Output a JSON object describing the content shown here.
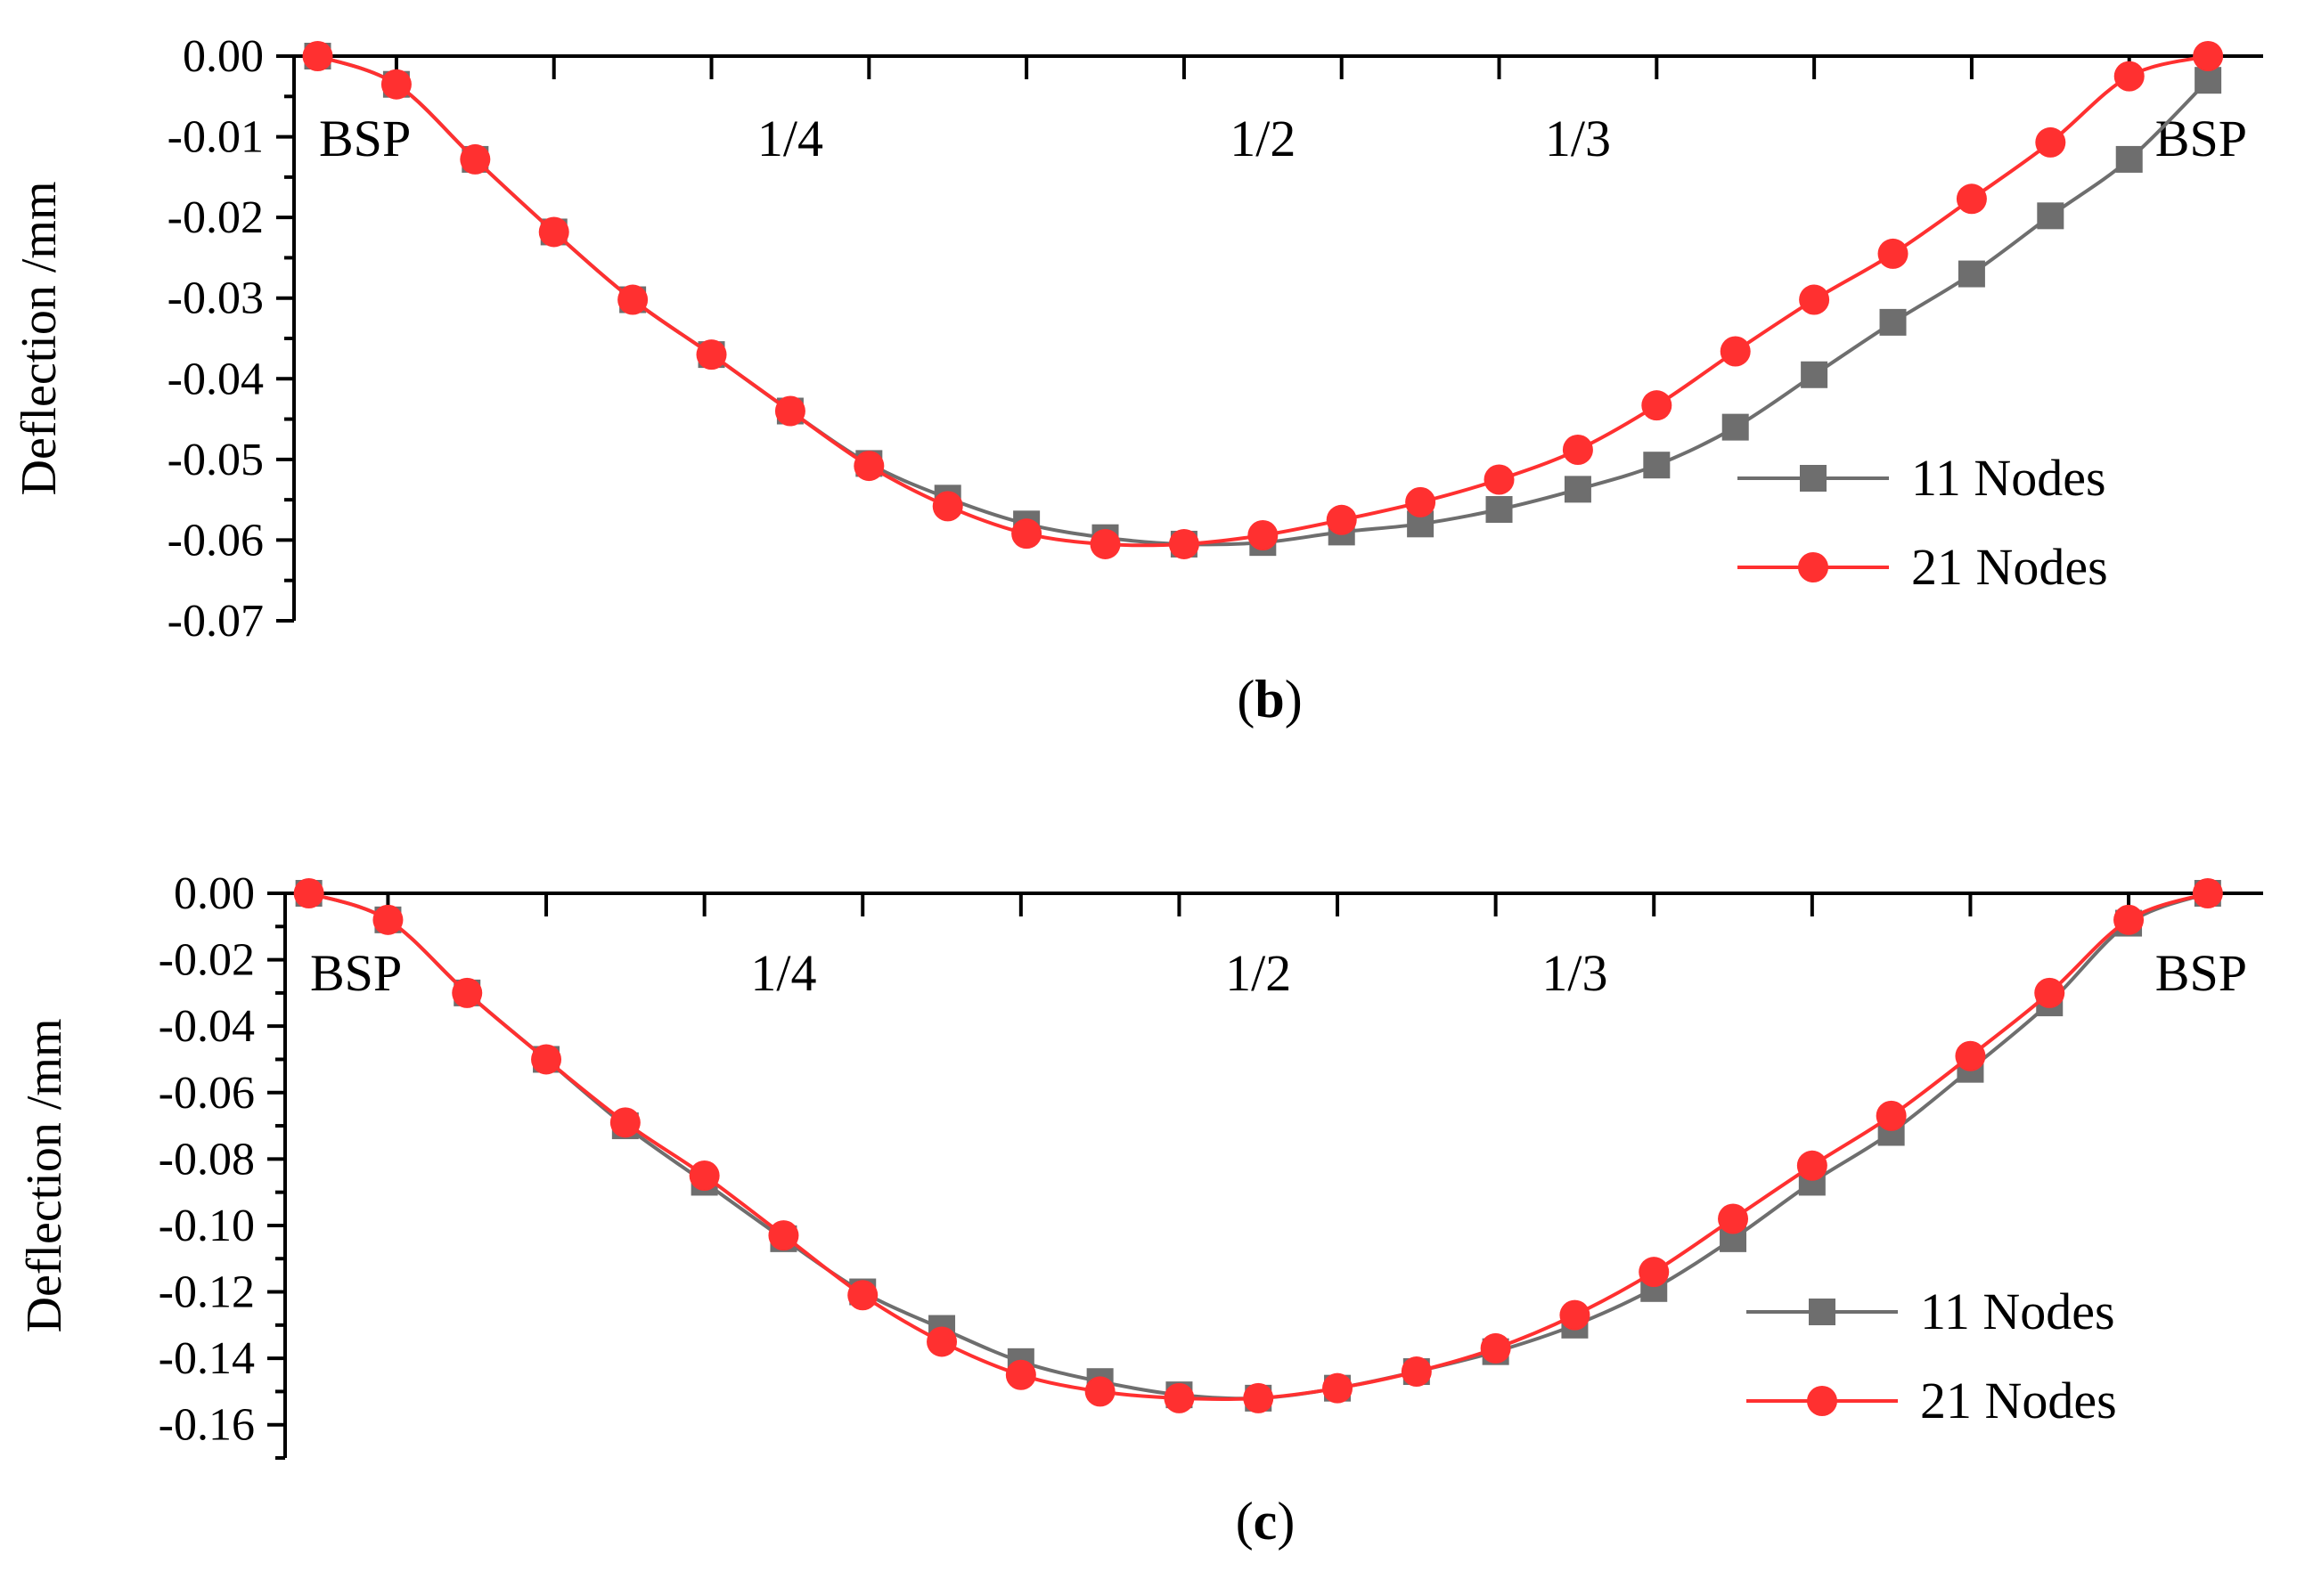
{
  "chart_data": [
    {
      "type": "line",
      "panel_label": "b",
      "ylabel": "Deflection /mm",
      "ylim": [
        -0.07,
        0.0
      ],
      "yticks": [
        "0.00",
        "-0.01",
        "-0.02",
        "-0.03",
        "-0.04",
        "-0.05",
        "-0.06",
        "-0.07"
      ],
      "ytick_values": [
        0.0,
        -0.01,
        -0.02,
        -0.03,
        -0.04,
        -0.05,
        -0.06,
        -0.07
      ],
      "x": [
        0,
        1,
        2,
        3,
        4,
        5,
        6,
        7,
        8,
        9,
        10,
        11,
        12,
        13,
        14,
        15,
        16,
        17,
        18,
        19,
        20,
        21,
        22,
        23,
        24
      ],
      "xlim": [
        -0.3,
        24.7
      ],
      "annotations": [
        {
          "text": "BSP",
          "x": 0
        },
        {
          "text": "1/4",
          "x": 6
        },
        {
          "text": "1/2",
          "x": 12
        },
        {
          "text": "1/3",
          "x": 16
        },
        {
          "text": "BSP",
          "x": 24
        }
      ],
      "legend": {
        "position": "bottom-right"
      },
      "series": [
        {
          "name": "11 Nodes",
          "color": "#6e6e6e",
          "marker": "square",
          "values": [
            0.0,
            -0.0035,
            -0.0128,
            -0.0218,
            -0.0302,
            -0.037,
            -0.044,
            -0.0505,
            -0.0548,
            -0.058,
            -0.0597,
            -0.0605,
            -0.0603,
            -0.059,
            -0.058,
            -0.0562,
            -0.0537,
            -0.0507,
            -0.046,
            -0.0395,
            -0.033,
            -0.027,
            -0.0198,
            -0.0128,
            -0.003
          ]
        },
        {
          "name": "21 Nodes",
          "color": "#ff3030",
          "marker": "circle",
          "values": [
            0.0,
            -0.0035,
            -0.0128,
            -0.0218,
            -0.0302,
            -0.037,
            -0.044,
            -0.0508,
            -0.0558,
            -0.0592,
            -0.0605,
            -0.0605,
            -0.0594,
            -0.0575,
            -0.0553,
            -0.0525,
            -0.0488,
            -0.0433,
            -0.0366,
            -0.0302,
            -0.0245,
            -0.0177,
            -0.0107,
            -0.0025,
            0.0
          ]
        }
      ]
    },
    {
      "type": "line",
      "panel_label": "c",
      "ylabel": "Deflection /mm",
      "ylim": [
        -0.17,
        0.0
      ],
      "yticks": [
        "0.00",
        "-0.02",
        "-0.04",
        "-0.06",
        "-0.08",
        "-0.10",
        "-0.12",
        "-0.14",
        "-0.16"
      ],
      "ytick_values": [
        0.0,
        -0.02,
        -0.04,
        -0.06,
        -0.08,
        -0.1,
        -0.12,
        -0.14,
        -0.16
      ],
      "x": [
        0,
        1,
        2,
        3,
        4,
        5,
        6,
        7,
        8,
        9,
        10,
        11,
        12,
        13,
        14,
        15,
        16,
        17,
        18,
        19,
        20,
        21,
        22,
        23,
        24
      ],
      "xlim": [
        -0.3,
        24.7
      ],
      "annotations": [
        {
          "text": "BSP",
          "x": 0
        },
        {
          "text": "1/4",
          "x": 6
        },
        {
          "text": "1/2",
          "x": 12
        },
        {
          "text": "1/3",
          "x": 16
        },
        {
          "text": "BSP",
          "x": 24
        }
      ],
      "legend": {
        "position": "bottom-right"
      },
      "series": [
        {
          "name": "11 Nodes",
          "color": "#6e6e6e",
          "marker": "square",
          "values": [
            0.0,
            -0.008,
            -0.03,
            -0.05,
            -0.07,
            -0.087,
            -0.104,
            -0.12,
            -0.131,
            -0.141,
            -0.147,
            -0.151,
            -0.152,
            -0.149,
            -0.144,
            -0.138,
            -0.13,
            -0.119,
            -0.104,
            -0.087,
            -0.072,
            -0.053,
            -0.033,
            -0.009,
            0.0
          ]
        },
        {
          "name": "21 Nodes",
          "color": "#ff3030",
          "marker": "circle",
          "values": [
            0.0,
            -0.008,
            -0.03,
            -0.05,
            -0.069,
            -0.085,
            -0.103,
            -0.121,
            -0.135,
            -0.145,
            -0.15,
            -0.152,
            -0.152,
            -0.149,
            -0.144,
            -0.137,
            -0.127,
            -0.114,
            -0.098,
            -0.082,
            -0.067,
            -0.049,
            -0.03,
            -0.008,
            0.0
          ]
        }
      ]
    }
  ]
}
